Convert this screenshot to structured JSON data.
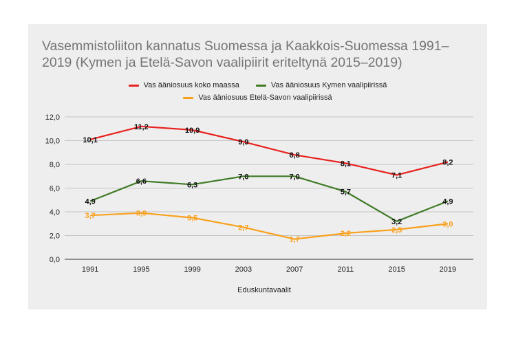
{
  "chart_data": {
    "type": "line",
    "title": "Vasemmistoliiton kannatus Suomessa ja Kaakkois-Suomessa 1991–2019 (Kymen ja Etelä-Savon vaalipiirit eriteltynä 2015–2019)",
    "xlabel": "Eduskuntavaalit",
    "ylabel": "",
    "categories": [
      "1991",
      "1995",
      "1999",
      "2003",
      "2007",
      "2011",
      "2015",
      "2019"
    ],
    "ylim": [
      0,
      12
    ],
    "yticks": [
      "0,0",
      "2,0",
      "4,0",
      "6,0",
      "8,0",
      "10,0",
      "12,0"
    ],
    "grid": true,
    "legend_position": "top",
    "series": [
      {
        "name": "Vas ääniosuus koko maassa",
        "color": "#e8211e",
        "values": [
          10.1,
          11.2,
          10.9,
          9.9,
          8.8,
          8.1,
          7.1,
          8.2
        ],
        "labels": [
          "10,1",
          "11,2",
          "10,9",
          "9,9",
          "8,8",
          "8,1",
          "7,1",
          "8,2"
        ]
      },
      {
        "name": "Vas ääniosuus Kymen vaalipiirissä",
        "color": "#3f7b25",
        "values": [
          4.9,
          6.6,
          6.3,
          7.0,
          7.0,
          5.7,
          3.2,
          4.9
        ],
        "labels": [
          "4,9",
          "6,6",
          "6,3",
          "7,0",
          "7,0",
          "5,7",
          "3,2",
          "4,9"
        ]
      },
      {
        "name": "Vas ääniosuus Etelä-Savon vaalipiirissä",
        "color": "#f9a01b",
        "values": [
          3.7,
          3.9,
          3.5,
          2.7,
          1.7,
          2.2,
          2.5,
          3.0
        ],
        "labels": [
          "3,7",
          "3,9",
          "3,5",
          "2,7",
          "1,7",
          "2,2",
          "2,5",
          "3,0"
        ]
      }
    ]
  }
}
